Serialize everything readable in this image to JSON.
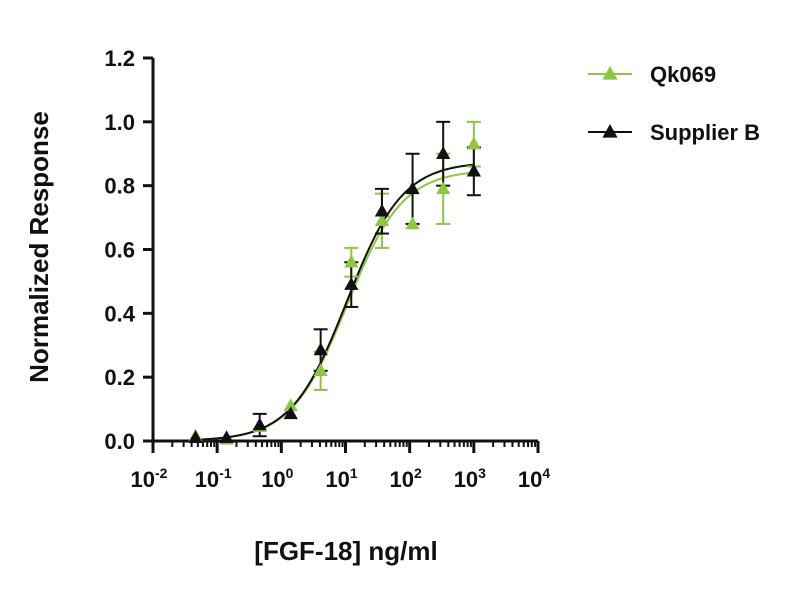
{
  "chart_data": {
    "type": "scatter",
    "xlabel": "[FGF-18] ng/ml",
    "ylabel": "Normalized Response",
    "x_scale": "log10",
    "xlim": [
      0.01,
      10000
    ],
    "ylim": [
      0,
      1.2
    ],
    "x_tick_labels": [
      {
        "base": "10",
        "exp": "-2"
      },
      {
        "base": "10",
        "exp": "-1"
      },
      {
        "base": "10",
        "exp": "0"
      },
      {
        "base": "10",
        "exp": "1"
      },
      {
        "base": "10",
        "exp": "2"
      },
      {
        "base": "10",
        "exp": "3"
      },
      {
        "base": "10",
        "exp": "4"
      }
    ],
    "y_tick_labels": [
      "0.0",
      "0.2",
      "0.4",
      "0.6",
      "0.8",
      "1.0",
      "1.2"
    ],
    "y_ticks": [
      0,
      0.2,
      0.4,
      0.6,
      0.8,
      1.0,
      1.2
    ],
    "x_ticks": [
      0.01,
      0.1,
      1,
      10,
      100,
      1000,
      10000
    ],
    "grid": false,
    "legend_position": "top-right",
    "series": [
      {
        "name": "Qk069",
        "color": "#8DC63F",
        "marker": "triangle",
        "points": [
          {
            "x": 0.046,
            "y": 0.015,
            "err": 0.0
          },
          {
            "x": 0.14,
            "y": 0.005,
            "err": 0.0
          },
          {
            "x": 0.46,
            "y": 0.045,
            "err": 0.0
          },
          {
            "x": 1.4,
            "y": 0.11,
            "err": 0.0
          },
          {
            "x": 4.1,
            "y": 0.22,
            "err": 0.06
          },
          {
            "x": 12.3,
            "y": 0.56,
            "err": 0.045
          },
          {
            "x": 37,
            "y": 0.69,
            "err": 0.085
          },
          {
            "x": 111,
            "y": 0.68,
            "err": 0.0
          },
          {
            "x": 333,
            "y": 0.79,
            "err": 0.11
          },
          {
            "x": 1000,
            "y": 0.93,
            "err": 0.07
          }
        ],
        "fit": {
          "bottom": 0.0,
          "top": 0.85,
          "ec50": 10.5,
          "hill": 1.0
        }
      },
      {
        "name": "Supplier B",
        "color": "#111111",
        "marker": "triangle",
        "points": [
          {
            "x": 0.046,
            "y": 0.01,
            "err": 0.0
          },
          {
            "x": 0.14,
            "y": 0.01,
            "err": 0.0
          },
          {
            "x": 0.46,
            "y": 0.05,
            "err": 0.035
          },
          {
            "x": 1.4,
            "y": 0.085,
            "err": 0.0
          },
          {
            "x": 4.1,
            "y": 0.285,
            "err": 0.065
          },
          {
            "x": 12.3,
            "y": 0.49,
            "err": 0.07
          },
          {
            "x": 37,
            "y": 0.72,
            "err": 0.07
          },
          {
            "x": 111,
            "y": 0.79,
            "err": 0.11
          },
          {
            "x": 333,
            "y": 0.9,
            "err": 0.1
          },
          {
            "x": 1000,
            "y": 0.845,
            "err": 0.075
          }
        ],
        "fit": {
          "bottom": 0.0,
          "top": 0.875,
          "ec50": 10.5,
          "hill": 1.0
        }
      }
    ]
  }
}
